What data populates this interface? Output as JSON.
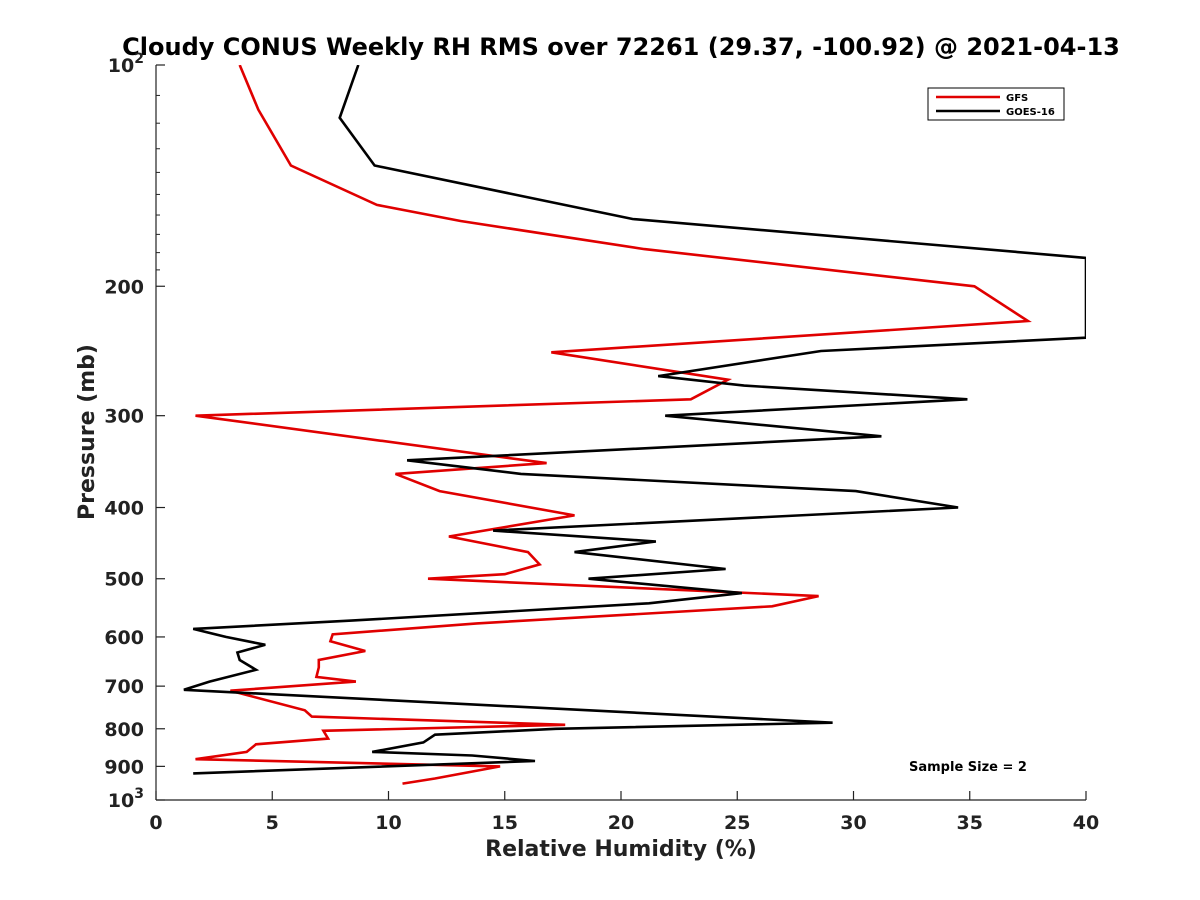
{
  "chart_data": {
    "type": "line",
    "title": "Cloudy CONUS Weekly RH RMS over 72261 (29.37, -100.92) @ 2021-04-13",
    "xlabel": "Relative Humidity (%)",
    "ylabel": "Pressure (mb)",
    "xlim": [
      0,
      40
    ],
    "ylim": [
      100,
      1000
    ],
    "y_scale": "log",
    "y_reversed": true,
    "x_ticks": [
      "0",
      "5",
      "10",
      "15",
      "20",
      "25",
      "30",
      "35",
      "40"
    ],
    "y_ticks": [
      {
        "p": 100,
        "base": "10",
        "exp": "2"
      },
      {
        "p": 200,
        "base": "200"
      },
      {
        "p": 300,
        "base": "300"
      },
      {
        "p": 400,
        "base": "400"
      },
      {
        "p": 500,
        "base": "500"
      },
      {
        "p": 600,
        "base": "600"
      },
      {
        "p": 700,
        "base": "700"
      },
      {
        "p": 800,
        "base": "800"
      },
      {
        "p": 900,
        "base": "900"
      },
      {
        "p": 1000,
        "base": "10",
        "exp": "3"
      }
    ],
    "legend_position": "top-right",
    "annotation": "Sample Size = 2",
    "series": [
      {
        "name": "GFS",
        "color": "#e00000",
        "points": [
          [
            3.6,
            100
          ],
          [
            4.4,
            115
          ],
          [
            5.8,
            137
          ],
          [
            9.5,
            155
          ],
          [
            13.1,
            163
          ],
          [
            21.0,
            178
          ],
          [
            35.2,
            200
          ],
          [
            37.5,
            223
          ],
          [
            17.0,
            246
          ],
          [
            24.6,
            268
          ],
          [
            23.0,
            285
          ],
          [
            1.7,
            300
          ],
          [
            16.8,
            348
          ],
          [
            10.3,
            360
          ],
          [
            12.2,
            380
          ],
          [
            18.0,
            410
          ],
          [
            12.6,
            438
          ],
          [
            16.0,
            460
          ],
          [
            16.5,
            478
          ],
          [
            15.0,
            493
          ],
          [
            11.7,
            500
          ],
          [
            28.5,
            528
          ],
          [
            26.5,
            545
          ],
          [
            13.8,
            575
          ],
          [
            7.6,
            595
          ],
          [
            7.5,
            608
          ],
          [
            9.0,
            627
          ],
          [
            7.0,
            645
          ],
          [
            7.0,
            660
          ],
          [
            6.9,
            680
          ],
          [
            8.6,
            690
          ],
          [
            3.2,
            710
          ],
          [
            6.4,
            755
          ],
          [
            6.7,
            770
          ],
          [
            17.6,
            790
          ],
          [
            7.2,
            805
          ],
          [
            7.4,
            825
          ],
          [
            4.3,
            840
          ],
          [
            3.9,
            860
          ],
          [
            1.7,
            880
          ],
          [
            14.8,
            900
          ],
          [
            12.0,
            935
          ],
          [
            10.6,
            950
          ]
        ]
      },
      {
        "name": "GOES-16",
        "color": "#000000",
        "points": [
          [
            8.7,
            100
          ],
          [
            7.9,
            118
          ],
          [
            9.4,
            137
          ],
          [
            20.5,
            162
          ],
          [
            40.0,
            183
          ],
          [
            40.0,
            235
          ],
          [
            28.6,
            245
          ],
          [
            21.6,
            265
          ],
          [
            25.3,
            273
          ],
          [
            34.9,
            285
          ],
          [
            21.9,
            300
          ],
          [
            31.2,
            320
          ],
          [
            10.8,
            345
          ],
          [
            15.7,
            360
          ],
          [
            30.1,
            380
          ],
          [
            34.5,
            400
          ],
          [
            14.5,
            430
          ],
          [
            21.5,
            445
          ],
          [
            18.0,
            460
          ],
          [
            24.5,
            485
          ],
          [
            18.6,
            500
          ],
          [
            25.2,
            523
          ],
          [
            21.2,
            540
          ],
          [
            8.4,
            570
          ],
          [
            1.6,
            585
          ],
          [
            3.0,
            600
          ],
          [
            4.7,
            615
          ],
          [
            3.5,
            630
          ],
          [
            3.6,
            645
          ],
          [
            4.3,
            665
          ],
          [
            2.3,
            690
          ],
          [
            1.2,
            708
          ],
          [
            29.1,
            785
          ],
          [
            17.2,
            800
          ],
          [
            12.0,
            815
          ],
          [
            11.5,
            835
          ],
          [
            9.3,
            860
          ],
          [
            13.6,
            870
          ],
          [
            16.3,
            885
          ],
          [
            1.6,
            920
          ]
        ]
      }
    ]
  }
}
